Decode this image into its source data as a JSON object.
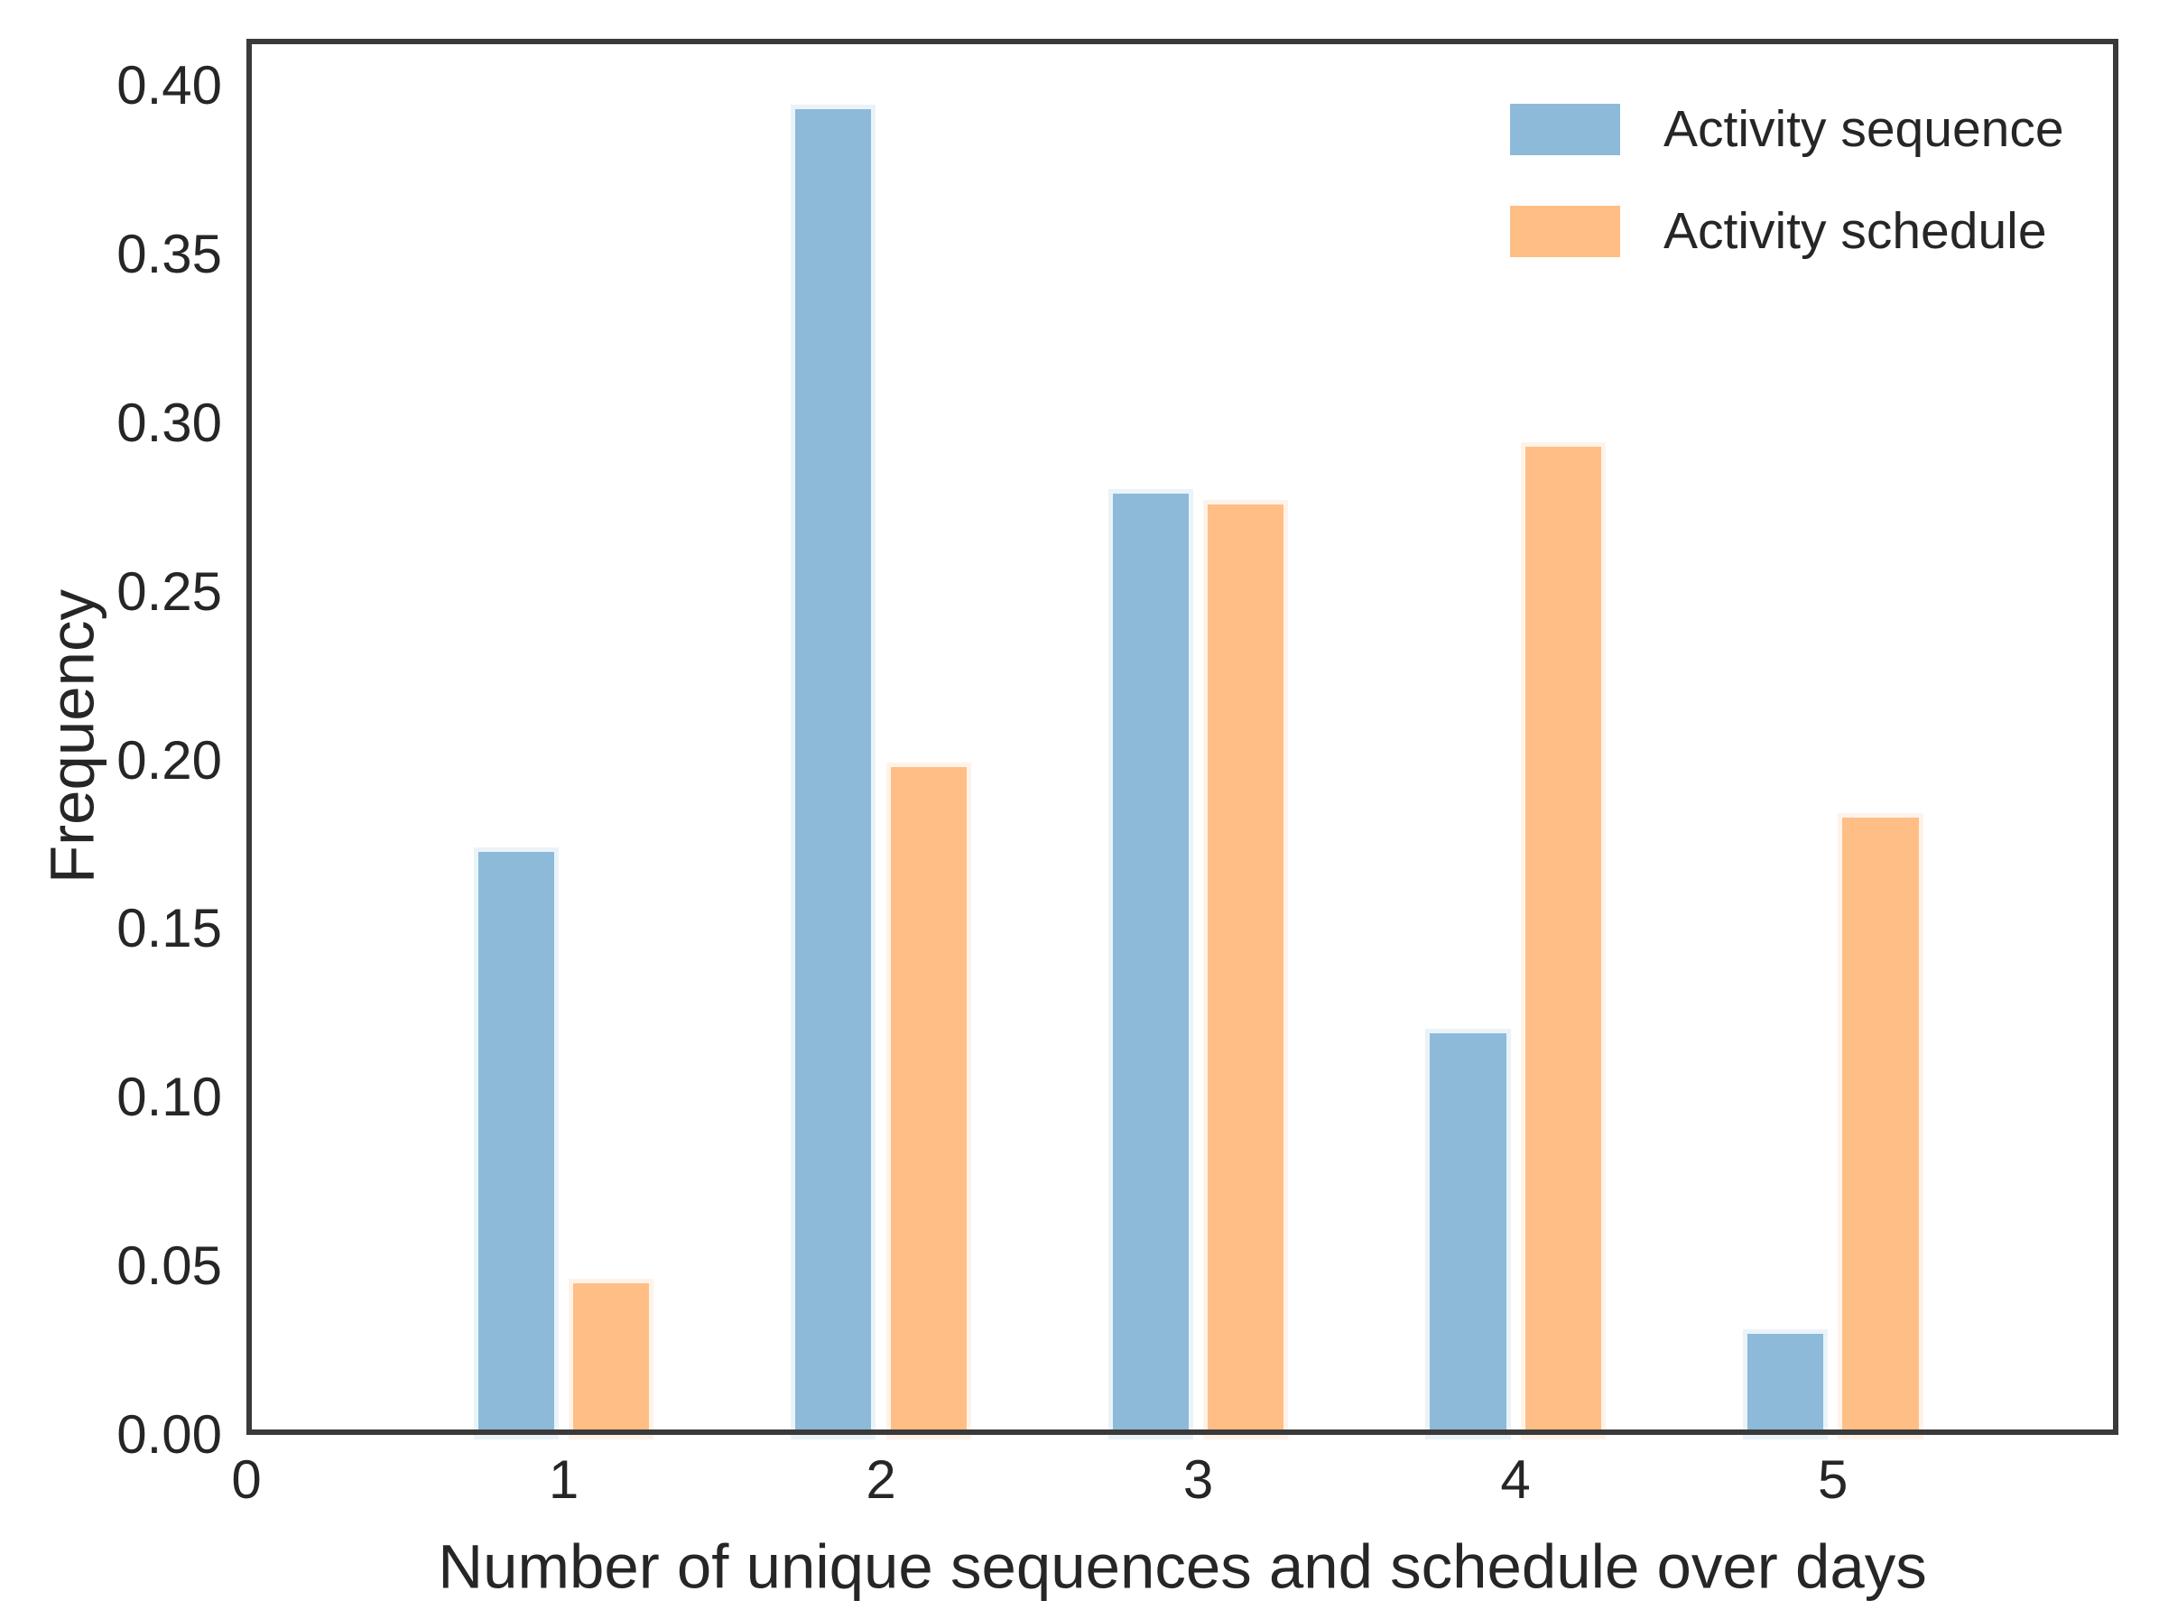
{
  "chart_data": {
    "type": "bar",
    "title": "",
    "xlabel": "Number of unique sequences and schedule over days",
    "ylabel": "Frequency",
    "categories": [
      1,
      2,
      3,
      4,
      5
    ],
    "series": [
      {
        "name": "Activity sequence",
        "color": "#8dbad9",
        "values": [
          0.173,
          0.393,
          0.279,
          0.119,
          0.03
        ]
      },
      {
        "name": "Activity schedule",
        "color": "#ffbe86",
        "values": [
          0.045,
          0.198,
          0.276,
          0.293,
          0.183
        ]
      }
    ],
    "xlim": [
      0,
      5.9
    ],
    "ylim": [
      0,
      0.414
    ],
    "xticks": [
      0,
      1,
      2,
      3,
      4,
      5
    ],
    "xtick_labels": [
      "0",
      "1",
      "2",
      "3",
      "4",
      "5"
    ],
    "yticks": [
      0,
      0.05,
      0.1,
      0.15,
      0.2,
      0.25,
      0.3,
      0.35,
      0.4
    ],
    "ytick_labels": [
      "0.00",
      "0.05",
      "0.10",
      "0.15",
      "0.20",
      "0.25",
      "0.30",
      "0.35",
      "0.40"
    ],
    "grid": false,
    "legend_position": "upper right"
  }
}
